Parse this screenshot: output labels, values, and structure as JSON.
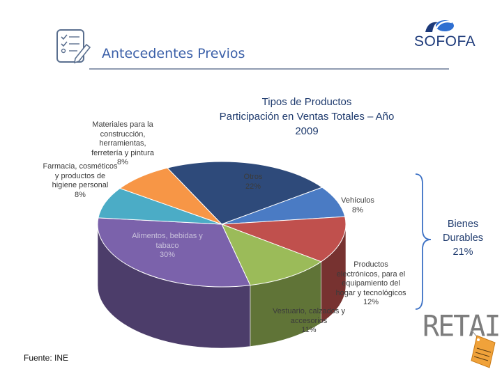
{
  "header": {
    "title": "Antecedentes Previos",
    "logo_text": "SOFOFA"
  },
  "chart_data": {
    "type": "pie",
    "title": "Tipos de Productos Participación en Ventas Totales – Año 2009",
    "title_lines": [
      "Tipos de Productos",
      "Participación en Ventas Totales – Año",
      "2009"
    ],
    "slices": [
      {
        "label": "Otros",
        "value": 22,
        "display": "22%",
        "color": "#2e4a7a",
        "label_lines": [
          "Otros",
          "22%"
        ]
      },
      {
        "label": "Vehículos",
        "value": 8,
        "display": "8%",
        "color": "#4a7bc4",
        "label_lines": [
          "Vehículos",
          "8%"
        ]
      },
      {
        "label": "Productos electrónicos, para el equipamiento del hogar y tecnológicos",
        "value": 12,
        "display": "12%",
        "color": "#c0504d",
        "label_lines": [
          "Productos",
          "electrónicos, para el",
          "equipamiento del",
          "hogar y tecnológicos",
          "12%"
        ]
      },
      {
        "label": "Vestuario, calzados y accesorios",
        "value": 11,
        "display": "11%",
        "color": "#9bbb59",
        "label_lines": [
          "Vestuario, calzados y",
          "accesorios",
          "11%"
        ]
      },
      {
        "label": "Alimentos, bebidas y tabaco",
        "value": 30,
        "display": "30%",
        "color": "#7b62ab",
        "label_lines": [
          "Alimentos, bebidas y",
          "tabaco",
          "30%"
        ]
      },
      {
        "label": "Farmacia, cosméticos y productos de higiene personal",
        "value": 8,
        "display": "8%",
        "color": "#4bacc6",
        "label_lines": [
          "Farmacia, cosméticos",
          "y productos de",
          "higiene personal",
          "8%"
        ]
      },
      {
        "label": "Materiales para la construcción, herramientas, ferretería y pintura",
        "value": 8,
        "display": "8%",
        "color": "#f79646",
        "label_lines": [
          "Materiales para la",
          "construcción,",
          "herramientas,",
          "ferretería y pintura",
          "8%"
        ]
      }
    ]
  },
  "bracket": {
    "lines": [
      "Bienes",
      "Durables",
      "21%"
    ]
  },
  "footer": {
    "source": "Fuente: INE"
  },
  "retail": {
    "text": "RETAIL"
  }
}
